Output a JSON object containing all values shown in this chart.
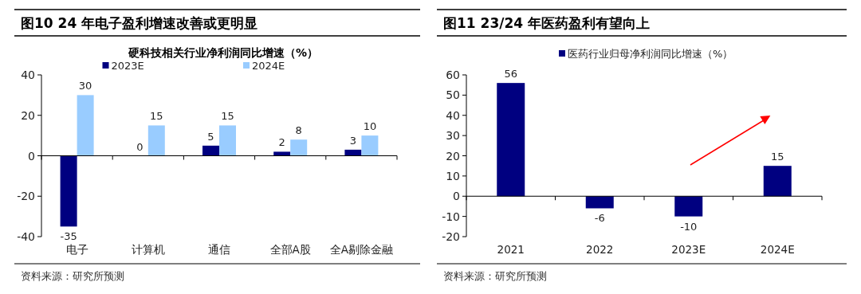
{
  "chart_data": [
    {
      "type": "bar",
      "title": "图10 24 年电子盈利增速改善或更明显",
      "subtitle": "硬科技相关行业净利润同比增速（%）",
      "categories": [
        "电子",
        "计算机",
        "通信",
        "全部A股",
        "全A剔除金融"
      ],
      "series": [
        {
          "name": "2023E",
          "color": "#000080",
          "values": [
            -35,
            0,
            5,
            2,
            3
          ]
        },
        {
          "name": "2024E",
          "color": "#99ccff",
          "values": [
            30,
            15,
            15,
            8,
            10
          ]
        }
      ],
      "ylim": [
        -40,
        40
      ],
      "yticks": [
        -40,
        -20,
        0,
        20,
        40
      ],
      "data_labels": true,
      "legend": "top",
      "annotations": [
        "资料来源：研究所预测"
      ]
    },
    {
      "type": "bar",
      "title": "图11 23/24 年医药盈利有望向上",
      "categories": [
        "2021",
        "2022",
        "2023E",
        "2024E"
      ],
      "series": [
        {
          "name": "医药行业归母净利润同比增速（%）",
          "color": "#000080",
          "values": [
            56,
            -6,
            -10,
            15
          ]
        }
      ],
      "ylim": [
        -20,
        60
      ],
      "yticks": [
        -20,
        -10,
        0,
        10,
        20,
        30,
        40,
        50,
        60
      ],
      "data_labels": true,
      "legend": "top",
      "annotations": [
        "资料来源：研究所预测"
      ]
    }
  ]
}
